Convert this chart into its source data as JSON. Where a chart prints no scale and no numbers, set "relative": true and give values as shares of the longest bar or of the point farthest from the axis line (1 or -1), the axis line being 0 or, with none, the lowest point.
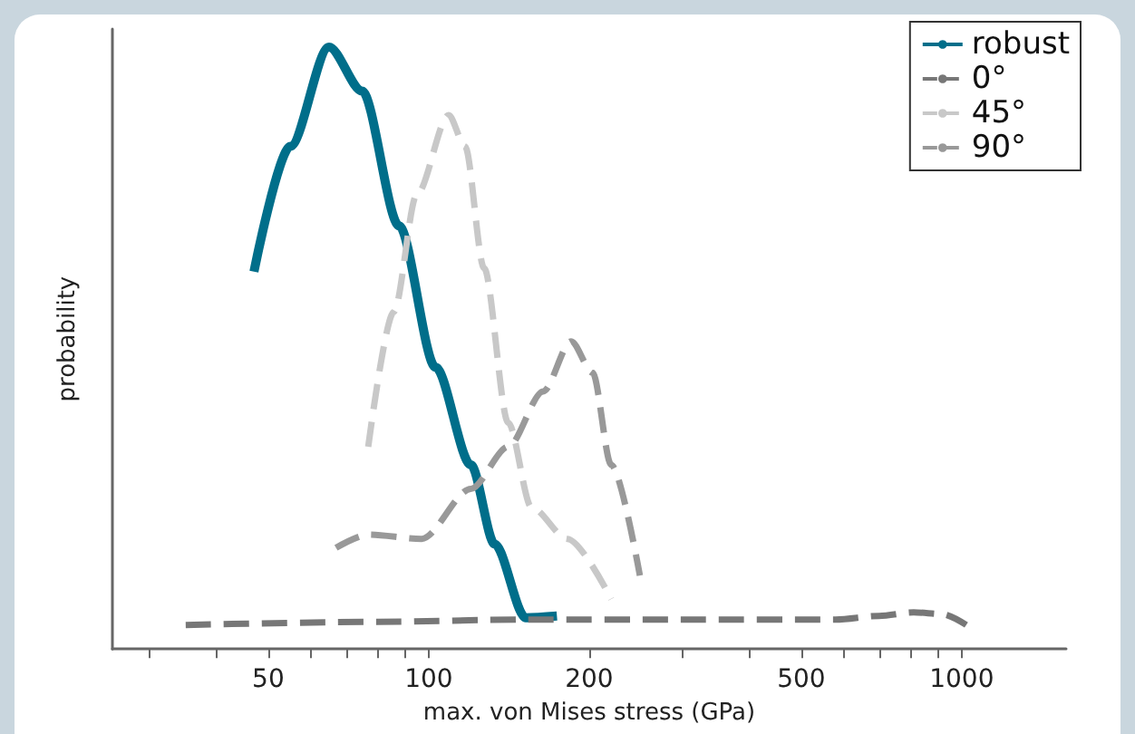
{
  "chart_data": {
    "type": "line",
    "xlabel": "max. von Mises stress (GPa)",
    "ylabel": "probability",
    "log": "x",
    "relative": true,
    "grid": false,
    "legend": "top right",
    "marker": "none",
    "tick_labels": "x",
    "xlim": [
      25.5,
      1570
    ],
    "xticks": [
      {
        "value": 30,
        "label": null
      },
      {
        "value": 40,
        "label": null
      },
      50,
      {
        "value": 60,
        "label": null
      },
      {
        "value": 70,
        "label": null
      },
      {
        "value": 80,
        "label": null
      },
      {
        "value": 90,
        "label": null
      },
      100,
      200,
      {
        "value": 300,
        "label": null
      },
      {
        "value": 400,
        "label": null
      },
      500,
      {
        "value": 600,
        "label": null
      },
      {
        "value": 700,
        "label": null
      },
      {
        "value": 800,
        "label": null
      },
      {
        "value": 900,
        "label": null
      },
      1000
    ],
    "series": [
      {
        "name": "robust",
        "color": "#006e8a",
        "line_style": "solid",
        "x": [
          47,
          55,
          65,
          75,
          88,
          103,
          120,
          133,
          152,
          174
        ],
        "values": [
          0.627,
          0.835,
          1,
          0.927,
          0.703,
          0.468,
          0.306,
          0.174,
          0.052,
          0.055
        ]
      },
      {
        "name": "0°",
        "color": "#777777",
        "line_style": "dashed",
        "x": [
          35,
          80,
          152,
          300,
          580,
          700,
          813,
          920,
          1020
        ],
        "values": [
          0.04,
          0.045,
          0.049,
          0.049,
          0.049,
          0.055,
          0.061,
          0.058,
          0.04
        ]
      },
      {
        "name": "45°",
        "color": "#c8c8c8",
        "line_style": "dashed",
        "x": [
          77,
          86,
          95,
          109,
          117,
          127,
          141,
          156,
          182,
          220
        ],
        "values": [
          0.336,
          0.56,
          0.755,
          0.887,
          0.835,
          0.633,
          0.376,
          0.235,
          0.183,
          0.083
        ]
      },
      {
        "name": "90°",
        "color": "#999999",
        "line_style": "dashed",
        "x": [
          67,
          77,
          97,
          120,
          141,
          164,
          185,
          203,
          220,
          249
        ],
        "values": [
          0.168,
          0.19,
          0.183,
          0.266,
          0.336,
          0.428,
          0.511,
          0.459,
          0.306,
          0.122
        ]
      }
    ]
  }
}
